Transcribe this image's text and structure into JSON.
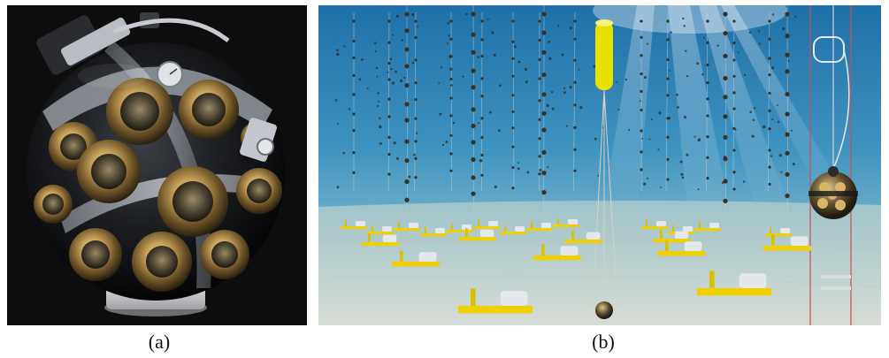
{
  "figure": {
    "panels": [
      {
        "id": "a",
        "caption": "(a)",
        "subject": "digital-optical-module-photo"
      },
      {
        "id": "b",
        "caption": "(b)",
        "subject": "underwater-detector-array-rendering"
      }
    ]
  },
  "colors": {
    "background": "#ffffff",
    "photo_backdrop": "#0d0d0e",
    "sphere_dark": "#1a1c1f",
    "pmt_gold": "#c9a15a",
    "harness_metal": "#c8ccd2",
    "water_top": "#1f6fa8",
    "water_bottom": "#7fb8cf",
    "seabed": "#c9d6d2",
    "buoy_yellow": "#e8e000",
    "base_yellow": "#f0d000"
  }
}
